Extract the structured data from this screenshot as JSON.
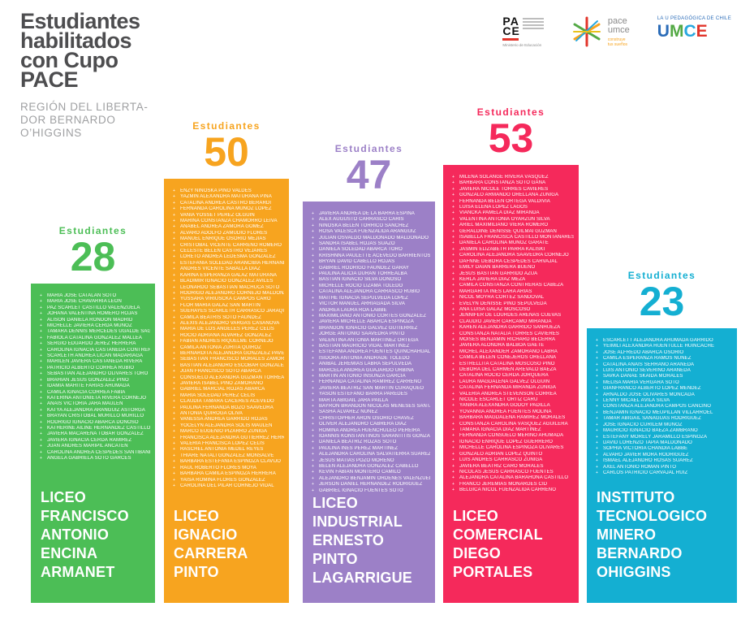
{
  "header": {
    "title_lines": [
      "Estudiantes",
      "habilitados",
      "con Cupo",
      "PACE"
    ],
    "subtitle_lines": [
      "REGIÓN DEL LIBERTA-",
      "DOR BERNARDO",
      "O’HIGGINS"
    ]
  },
  "logos": {
    "pace_gov": {
      "line1": "PA",
      "line2": "CE",
      "ministry": "Ministerio de Educación"
    },
    "pace_umce": {
      "name_line1": "pace",
      "name_line2": "umce",
      "tagline_line1": "construye",
      "tagline_line2": "tus sueños"
    },
    "umce": {
      "tagline": "LA U PEDAGÓGICA DE CHILE",
      "name_letters": [
        "U",
        "M",
        "C",
        "E"
      ]
    }
  },
  "chart_data": {
    "type": "bar",
    "title": "Estudiantes habilitados con Cupo PACE",
    "region": "REGIÓN DEL LIBERTADOR BERNARDO O’HIGGINS",
    "value_label": "Estudiantes",
    "ylim": [
      0,
      53
    ],
    "categories": [
      "LICEO FRANCISCO ANTONIO ENCINA ARMANET",
      "LICEO IGNACIO CARRERA PINTO",
      "LICEO INDUSTRIAL ERNESTO PINTO LAGARRIGUE",
      "LICEO COMERCIAL DIEGO PORTALES",
      "INSTITUTO TECNOLOGICO MINERO BERNARDO OHIGGINS"
    ],
    "values": [
      28,
      50,
      47,
      53,
      23
    ],
    "columns": [
      {
        "school": "LICEO FRANCISCO ANTONIO ENCINA ARMANET",
        "school_lines": [
          "LICEO",
          "FRANCISCO",
          "ANTONIO",
          "ENCINA",
          "ARMANET"
        ],
        "count": 28,
        "color": "#4cbe56",
        "students": [
          "MARÍA JOSÉ CATALÁN SOTO",
          "MARÍA JOSÉ CHAVARRÍA LEÓN",
          "PAZ SCARLET CASTILLO VALENZUELA",
          "JOHANA VALENTINA ROMERO ROJAS",
          "ALISON DANIELA RONDÓN MADRID",
          "MICHELLE JAVIERA CERDA MUÑOZ",
          "TAMARA DENNIS MERCEDES UGALDE SAGREDO",
          "FABIOLA CATALINA GONZÁLEZ MALLEA",
          "SERGIO EDUARDO JEREZ HERRERA",
          "CAROLINA IGNACIA CASTAÑEDA CONTRERAS",
          "SCARLETH ANDREA LICAN MADARIAGA",
          "MARILEN JAVIERA CASTAÑEDA RIVERA",
          "PATRICIO ALBERTO CORREA RUBIO",
          "SEBASTIÁN ALEJANDRO OLIVARES TORO",
          "BRAHIAN JESÚS GONZÁLEZ PINO",
          "IDAMIA MAHITE FARÍAS AHUMADA",
          "CAMILA IGNACIA CORREA FABIA",
          "KATERINA ANTONIETA RIVERA CORNEJO",
          "ANAÍS VICTORIA JARA MAULÉN",
          "KATYA ALEJANDRA ARÁNGUIZ ASTORGA",
          "BRAYAN CRISTÓBAL MURILLO MURILLO",
          "RODRIGO IGNACIO ABARCA DONOSO",
          "KATHERINE AILINE HERNÁNDEZ CASTILLO",
          "JAVIERA MACARENA TOBAR GONZÁLEZ",
          "JAVIERA IGNACIA CERDA RAMÍREZ",
          "JUAN ANDRÉS MARIPIL ANCATÉN",
          "CAROLINA ANDREA CÉSPEDES SANTIBÁÑEZ",
          "ANGELA GABRIELA SOTO GARCÉS"
        ]
      },
      {
        "school": "LICEO IGNACIO CARRERA PINTO",
        "school_lines": [
          "LICEO",
          "IGNACIO",
          "CARRERA",
          "PINTO"
        ],
        "count": 50,
        "color": "#f7a41f",
        "students": [
          "ENZY NINOSKA PINO VALDÉS",
          "YAZMÍN ALEXANDRA MATURANA PIÑA",
          "CATALINA ANDREA CASTRO BERARDI",
          "FERNANDA CAROLINA MUÑOZ LÓPEZ",
          "VANIA YOSSET PÉREZ OLGUÍN",
          "MARINA CONSTANZA CHAMORRO LEIVA",
          "ANABEL ANDREA ZAMORA GÓMEZ",
          "ÁLVARO ADOLFO ZAMUDIO FLORES",
          "MANUEL ENRIQUE OSORIO MEJÍAS",
          "CRISTÓBAL VICENTE CARREÑO ROMERO",
          "CELESTE BELÉN CASTRO VEJARES",
          "LORETO ANDREA LEDESMA GONZÁLEZ",
          "ESTEFANIA SOLEDAD ARANCIBIA  HERNANDEZ",
          "ANDRÉS VICENTE SABALLA DÍAZ",
          "KARINA ESPERANZA GALAZ MATURANA",
          "BLADIMIR IGNACIO GONZÁLEZ AVILÉS",
          "LEONARDO SEBASTIÁN MACHUCA SOTO",
          "RODRIGO ALEJANDRO CORNEJO MALDONADO",
          "YUSSARA VIRIUSCKA CAMPOS CARO",
          "FLOR MARÍA GALAZ SAN MARTÍN",
          "SUEHAYES SCARLETH CARRASCO JARAQUEMADA",
          "CAMILA BEATRIS SOTO FAÚNDEZ",
          "ALEXIS ALEJANDRO VARGAS CASANOVA",
          "MARÍA DE LOS ANGELES PÉREZ CELIS",
          "ROCÍO ADRIANA ÁLVAREZ GONZÁLEZ",
          "FABIÁN ANDRÉS RIQUELME CORNEJO",
          "CAMILA ANTONIA ZURITA QUIROZ",
          "BERNARDITA ALEJANDRA GONZÁLEZ PAVEZ",
          "SEBASTIÁN FRANCISCO MORALES ZAMORANO",
          "BASTIÁN ALEJANDRO ESCOBAR GONZÁLEZ",
          "JUAN FRANCISCO SOTO ABARCA",
          "CONSUELO ALEXANDRA GUZMÁN TORREALBA",
          "JAVIERA ISABEL PINO ZAMORANO",
          "GABRIEL MARCIAL ROJAS  ABARCA",
          "MARÍA SOLEDAD PÉREZ CELIS",
          "CLAUDIA TAMARA CÁCERES ACEVEDO",
          "PAULINA FERNANDA BOZO SAAVEDRA",
          "ANTONIA QUIROGA OLIVA",
          "VANESSA ANDREA GARRIDO ROJAS",
          "YOCELYN ALEJANDRA SOLÍS MAULÉN",
          "MARCO EUGENIO PIZARRO  ZÚÑIGA",
          "FRANCISCA ALEJANDRA GUTIÉRREZ HERRERA",
          "VALERIA FRANCISCA LÓPEZ CELIS",
          "RASCHEL ANTONIA MEDEL REYES",
          "THIARE NATALI GONZÁLEZ MONSALVE",
          "BÁRBARA ESTEFANÍA ESPINOZA CLAVIJO",
          "RAÚL ROBERTO FLORES MOYA",
          "BÁRBARA CAMILA ESPINOZA HERRERA",
          "YAISA ROMINA FLORES GONZÁLEZ",
          "CAROLINA DEL PILAR CORNEJO VIDAL"
        ]
      },
      {
        "school": "LICEO INDUSTRIAL ERNESTO PINTO LAGARRIGUE",
        "school_lines": [
          "LICEO",
          "INDUSTRIAL",
          "ERNESTO",
          "PINTO",
          "LAGARRIGUE"
        ],
        "count": 47,
        "color": "#9c80c7",
        "students": [
          "JAVIERA ANDREA DE LA BARRA ESPINA",
          "ALEX AUGUSTO CARRASCO CARIS",
          "NINOSKA BELÉN TORRICO SÁNCHEZ",
          "ROSA VALESCA FUENZALIDA ARÁNGUIZ",
          "JULIÁN OSVALDO MALDONADO MALDONADO",
          "SANDRA ISABEL ROJAS SUAZO",
          "DANIELA SOLEDAD ABARCA TORO",
          "KRISHNNA PAULETTE ACEVEDO BARRIENTOS",
          "BRYAN DAVID CABELLO ROJAS",
          "GABRIEL RODRIGO FAÚNDEZ GARAY",
          "PAULINA ALICIA DURÁN TORREALBA",
          "BASTIÁN IGNACIO SILVA DONOSO",
          "MICHELLE ROCÍO LIZAMA TOLEDO",
          "CATALINA ALEJANDRA CARRASCO RUBIO",
          "MAITHE IGNACIA SEPÚLVEDA LÓPEZ",
          "VÍCTOR MANUEL ARRIAGADA SILVA",
          "ANDREA LAURA ROA LABBÉ",
          "MAXIMILIANO ANTONIO CORTÉS GONZÁLEZ",
          "JAVIERA MICHELLE ABARCA ESPINOZA",
          "BRANDON IGNACIO GÁLVEZ GUTIÉRREZ",
          "JORGE ANTONIO SAAVEDRA PINTO",
          "VALENTINA ANTONIA MARTÍNEZ  ORTEGA",
          "BASTIÁN MAURICIO VIDAL MARTÍNEZ",
          "ESTEFANÍA ANDREA FUENTES QUINCHAHUALA",
          "ISIDORA ANTONIA ANDRADE  TOLEDO",
          "ANÍBAL JEREMÍAS LABRA SEPÚLVEDA",
          "MARCELA ANDREA GUAJARDO URBINA",
          "MARTÍN ANTONIO INSUNZA GARCÍA",
          "FERNANDA CATALINA RAMÍREZ CARREÑO",
          "JAVIERA BEATRIZ SAN MARTÍN CURAQUEO",
          "YASON ESTEFANO BARRA PAREDES",
          "MARTA ABIGAIL JARA PAILLA",
          "BAYRON BRANDON NICOLÁS MENESES SANTANDER",
          "SASHA ÁLVAREZ NÚÑEZ",
          "CHRISTOPHER ARON OSORIO CHÁVEZ",
          "OLIVER ALEJANDRO CABRERA DÍAZ",
          "ROMINA ANDREA HUENCHULEO  PEREIRA",
          "IOANNIS KONSTANTINOS SARANTITIS GONZALO",
          "DANIELA BEATRIZ ROZAS SOTO",
          "PAULINA INÉS PÉREZ MARTÍNEZ",
          "ALEJANDRA CAROLINA SALVATIERRA SUÁREZ",
          "JESÚS MATÍAS POZO MORENO",
          "BELÉN ALEJANDRA GONZÁLEZ CABELLO",
          "KEVIN FABIÁN MONTERO CAMILO",
          "ALEJANDRO BENJAMÍN ÓRDENES  VALENZUELA",
          "JERSON DANIEL HERNÁNDEZ RODRÍGUEZ",
          "GABRIEL IGNACIO FUENTES SOTO"
        ]
      },
      {
        "school": "LICEO COMERCIAL DIEGO PORTALES",
        "school_lines": [
          "LICEO",
          "COMERCIAL",
          "DIEGO",
          "PORTALES"
        ],
        "count": 53,
        "color": "#f5295b",
        "students": [
          "MILENA SOLANGE RIVERA VÁSQUEZ",
          "BÁRBARA CONSTANZA SOTO GANA",
          "JAVIERA NICOLE TORRES CAVIERES",
          "GONZALO ARMANDO ORELLANA ZÚÑIGA",
          "FERNANDA BELÉN ORTEGA VALDIVIA",
          "LUISA ELENA LÓPEZ LAGOS",
          "VIANCKA PAMELA DÍAZ MIRANDA",
          "VALENTINA ANTONIA OYARZÚN SILVA",
          "ARIEL MAXIMILIANO VIERA ROMERO",
          "GERALDINE DENISSE QUILMAI GUZMÁN",
          "ISABELLA FRANCISCA CASTILLO MONTANARES",
          "DANIELA CAROLINA MUÑOZ GÁRATE",
          "JASMÍN ELIZABETH PARRA KALISKI",
          "CAROLINA ALEJANDRA SAAVEDRA CORNEJO",
          "DAFNNE DEBORA CÉSPEDES CARVAJAL",
          "EMILY DAIAN BARRERA BUENO",
          "JESÚS BASTIÁN GARRIDO AZÚA",
          "KERLA JAVIERA DÍAZ MEZA",
          "CAMILA CONSTANZA CONTRERAS CABEZA",
          "MARGARITA INÉS LARA ARIAS",
          "NICOL MOYRA CORTEZ SANDOVAL",
          "EVELYN DENISSE PINO SEPÚLVEDA",
          "ANA LUISA GALAZ  MOSCOSO",
          "JENNIFER DE LOURDES ARENAS CUEVAS",
          "CLAUDIO JAVIER CÁRCAMO MIRANDA",
          "KAREN ALEJANDRA GARRIDO SANHUEZA",
          "CONSTANZA NATALIA TORRES CAVIERES",
          "MOISÉS BENJAMÍN RICHARD BECERRA",
          "JAVIERA ALONDRA BALBOA GAETE",
          "MICHEL ALEXANDER ZAMORANO LABRA",
          "CAMILA BELÉN CONEJEROS ORELLANA",
          "ESTRELLITA CATALINA MOSCOSO PINO",
          "DEBORA DEL CARMEN ARÉVALO BAEZA",
          "CATALINA ROCÍO CERDA JORQUERA",
          "LAURA MAGDALENA GÁLVEZ OLGUÍN",
          "CATALINA FERNANDA MIRANDA ZÚÑIGA",
          "VALERIA ANDREA STEVENSON CORREA",
          "NICOLE ESCARLET ORTIZ CARU",
          "YANIRA ALEXANDRA GODOY PADILLA",
          "YOVANNIA ANDREA FUENTES MOLINA",
          "BÁRBARA MAGDALENA RAMÍREZ  MORALES",
          "CONSTANZA CAROLINA VÁSQUEZ AGUILERA",
          "TAMARA IGNACIA DÍAZ MARTÍNEZ",
          "FERNANDA CONSUELO MERINO AHUMADA",
          "IGNACIO ENRIQUE LÓPEZ GUERRERO",
          "MICHELLE CAROLINA ESPINOZA OLIVARES",
          "GONZALO ADRIÁN LÓPEZ QUINTO",
          "LUIS ANDRÉS CARRASCO ZÚÑIGA",
          "JAVIERA BEATRIZ CARO MORALES",
          "NICOLÁS JESÚS CARRASCO FUENTES",
          "ALEJANDRA CATALINA BARAHONA CASTILLO",
          "FRANCO JEREMÍAS MONARDES CID",
          "BÉLGICA NICOL FUENZALIDA CARREÑO"
        ]
      },
      {
        "school": "INSTITUTO TECNOLOGICO MINERO BERNARDO OHIGGINS",
        "school_lines": [
          "INSTITUTO",
          "TECNOLOGICO",
          "MINERO",
          "BERNARDO",
          "OHIGGINS"
        ],
        "count": 23,
        "color": "#14afd2",
        "students": [
          "ESCARLETT ALEJANDRA AHUMADA GARRIDO",
          "YEIMILI ALEXANDRA HUENTULLE HUINCACHE",
          "JOSÉ ALFREDO ABARCA OSORIO",
          "CAMILA ESPERANZA RAMOS NÚÑEZ",
          "CATALINA ANAÍS SERRANO ARANEDA",
          "LUIS ANTONIO SEVERINO ARANEDA",
          "SAVKA DANAE SKAIDA MORALES",
          "MELISA MARÍA VERGARA SOTO",
          "GIANFRANCO ALBERTO LÓPEZ MÉNDEZ",
          "ARNALDO JOSÉ OLIVARES MONCADA",
          "LENNY MICAEL ÁVILA SILVA",
          "CONSTANZA ALEJANDRA CAMPOS CANCINO",
          "BENJAMÍN IGNACIO MEUPILLÁN VILLARROEL",
          "TAMAR ABIGAIL SANAGUAS RODRÍGUEZ",
          "JOSÉ IGNACIO CURILEM MUÑOZ",
          "MAURICIO IGNACIO BAEZA ZAMBRANO",
          "ESTEFANY MORELY JARAMILLO ESPINOZA",
          "DAVID LORENZO TAPIA MALDONADO",
          "SOPHIA VICTORIA CHANDÍA LABBÉ",
          "ÁLVARO JAVIER MORA RODRÍGUEZ",
          "ISMAEL ALEJANDRO ROSAS SUÁREZ",
          "AXEL ANTONIO ROMÁN PINTO",
          "CARLOS PATRICIO CARVAJAL RUIZ"
        ]
      }
    ]
  }
}
